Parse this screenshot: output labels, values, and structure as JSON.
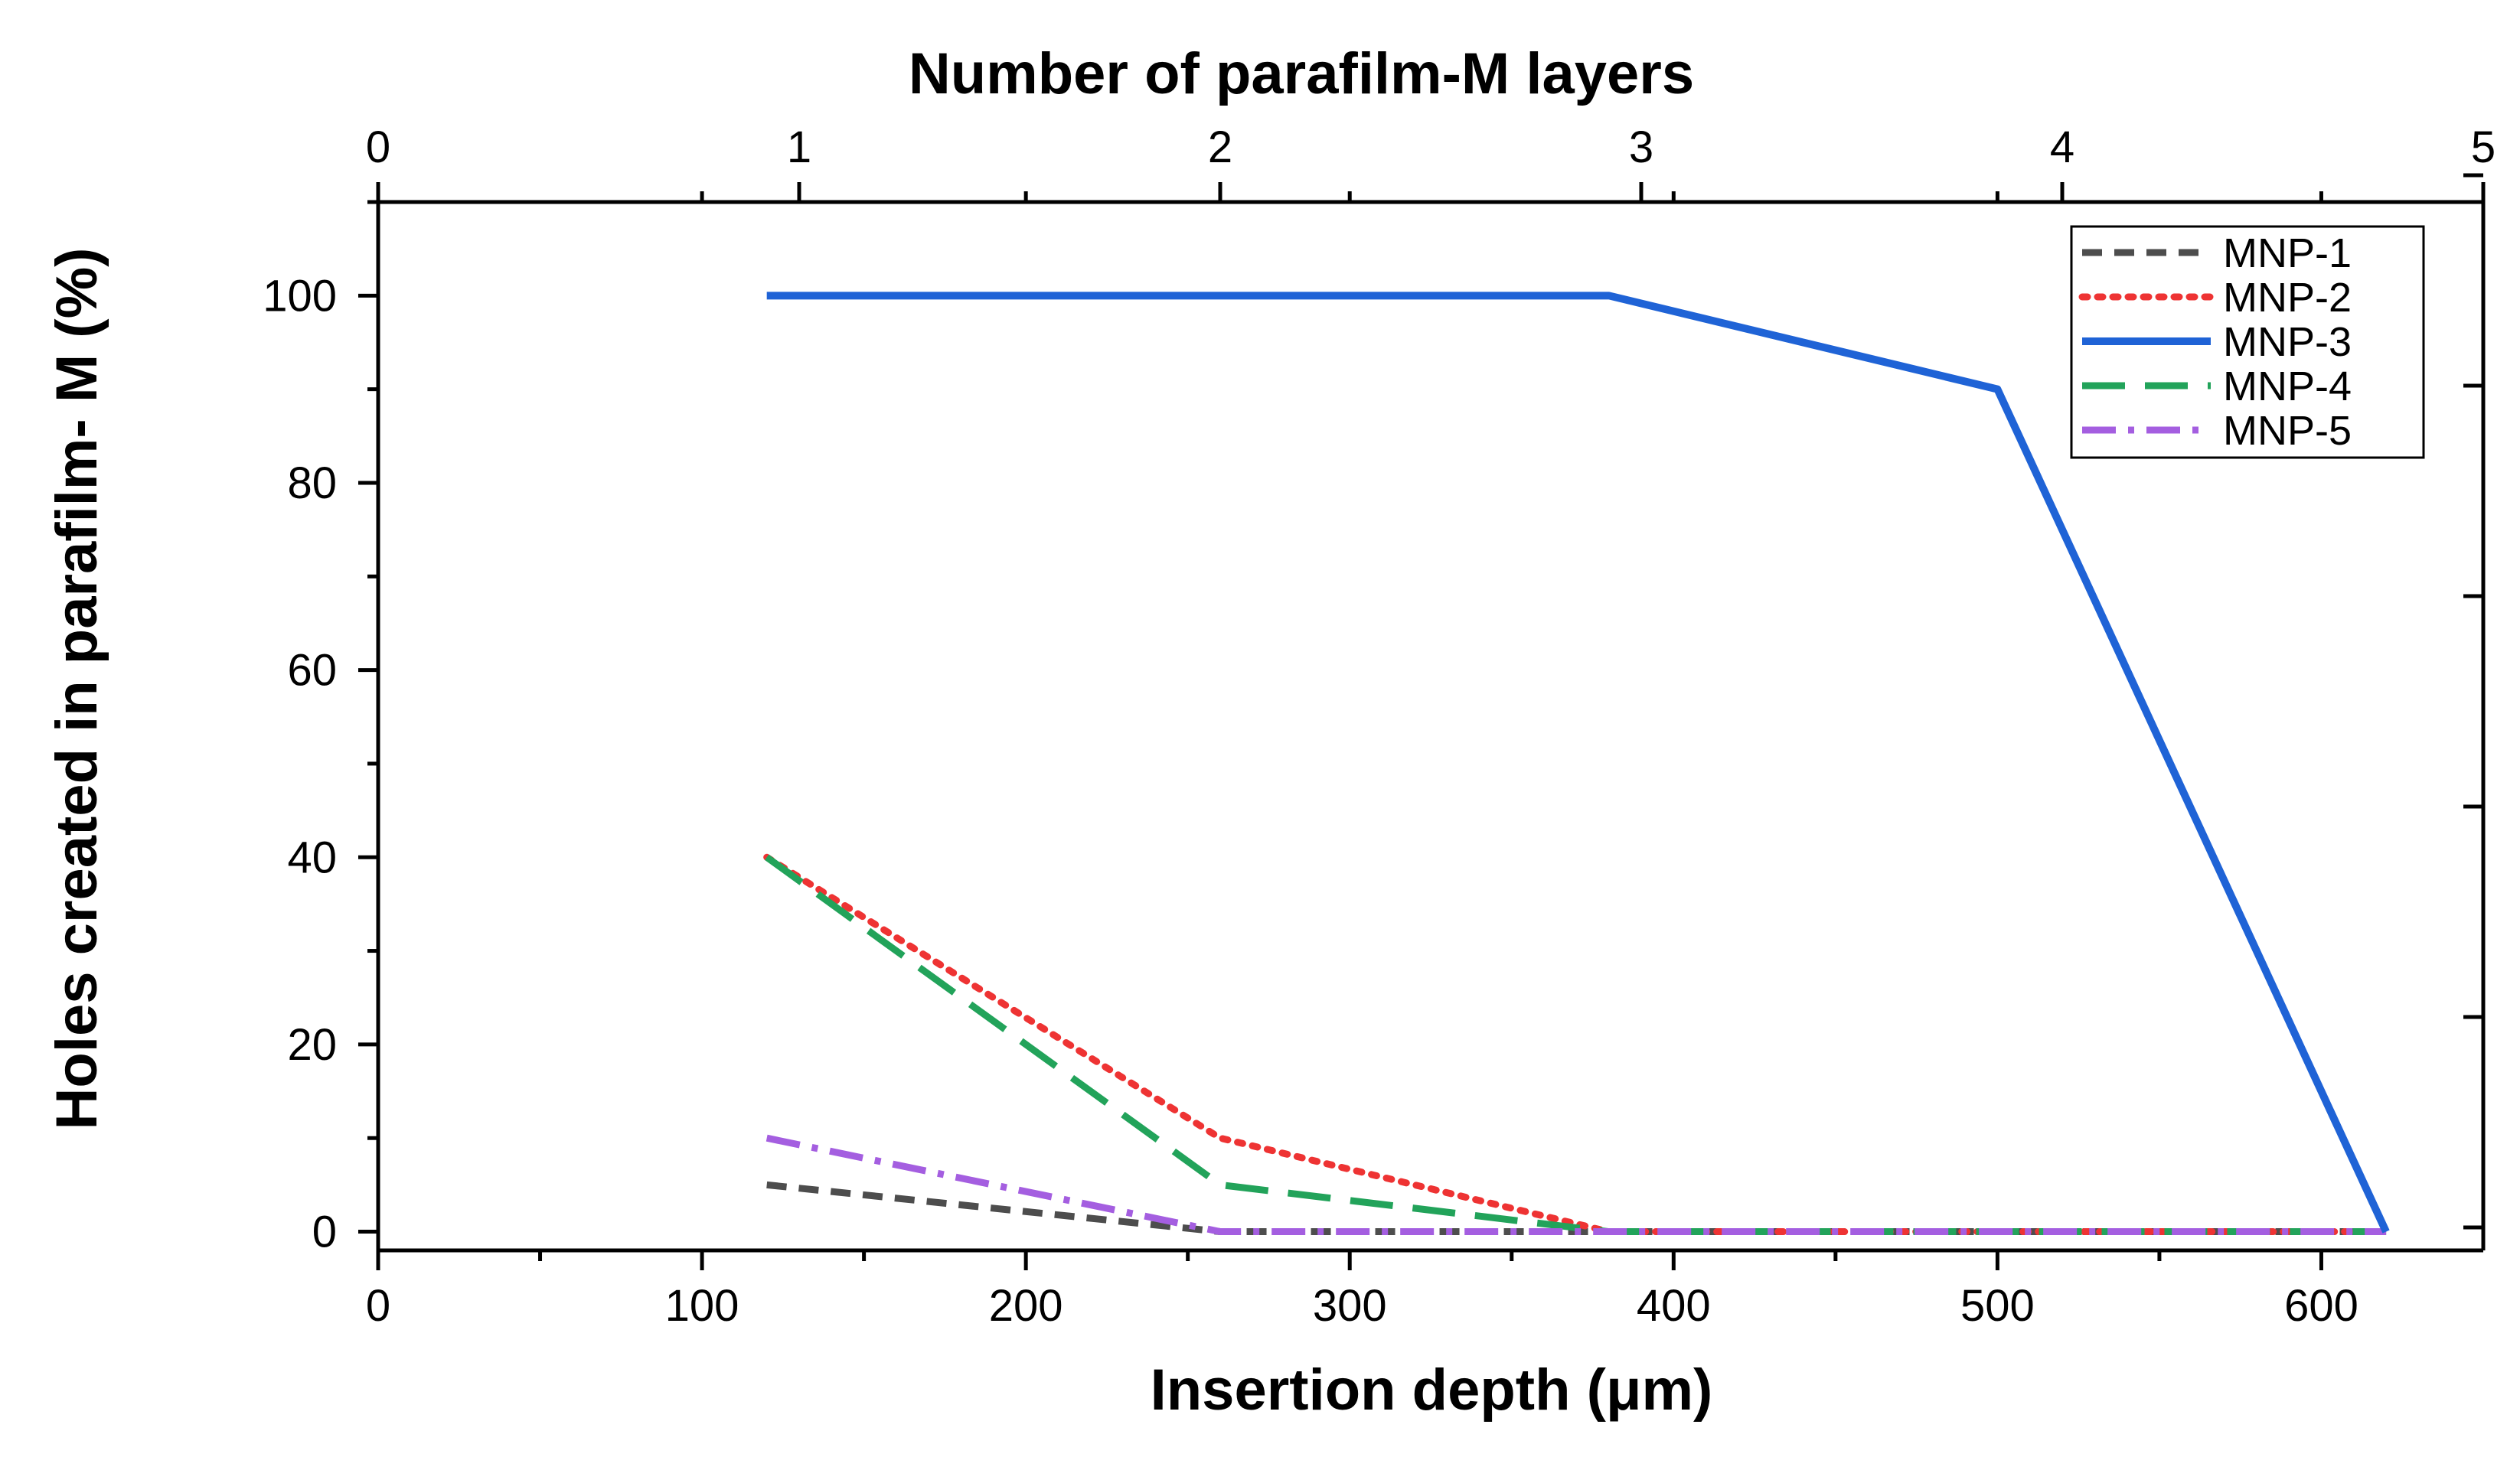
{
  "chart_data": {
    "type": "line",
    "xlabel": "Insertion depth (μm)",
    "ylabel": "Holes created in parafilm- M (%)",
    "x2label": "Number of parafilm-M layers",
    "xlim": [
      0,
      650
    ],
    "ylim": [
      -2,
      110
    ],
    "x2lim": [
      0,
      5
    ],
    "xticks": [
      0,
      100,
      200,
      300,
      400,
      500,
      600
    ],
    "yticks": [
      0,
      20,
      40,
      60,
      80,
      100
    ],
    "x2ticks": [
      0,
      1,
      2,
      3,
      4,
      5
    ],
    "x": [
      120,
      260,
      380,
      500,
      620
    ],
    "series": [
      {
        "name": "MNP-1",
        "color": "#4d4d4d",
        "dash": "dash",
        "values": [
          5,
          0,
          0,
          0,
          0
        ]
      },
      {
        "name": "MNP-2",
        "color": "#ee3333",
        "dash": "dot",
        "values": [
          40,
          10,
          0,
          0,
          0
        ]
      },
      {
        "name": "MNP-3",
        "color": "#1f63d6",
        "dash": "solid",
        "values": [
          100,
          100,
          100,
          90,
          0
        ]
      },
      {
        "name": "MNP-4",
        "color": "#22a35a",
        "dash": "longdash",
        "values": [
          40,
          5,
          0,
          0,
          0
        ]
      },
      {
        "name": "MNP-5",
        "color": "#a45ee0",
        "dash": "dashdot",
        "values": [
          10,
          0,
          0,
          0,
          0
        ]
      }
    ],
    "legend_position": "top-right",
    "grid": false
  }
}
